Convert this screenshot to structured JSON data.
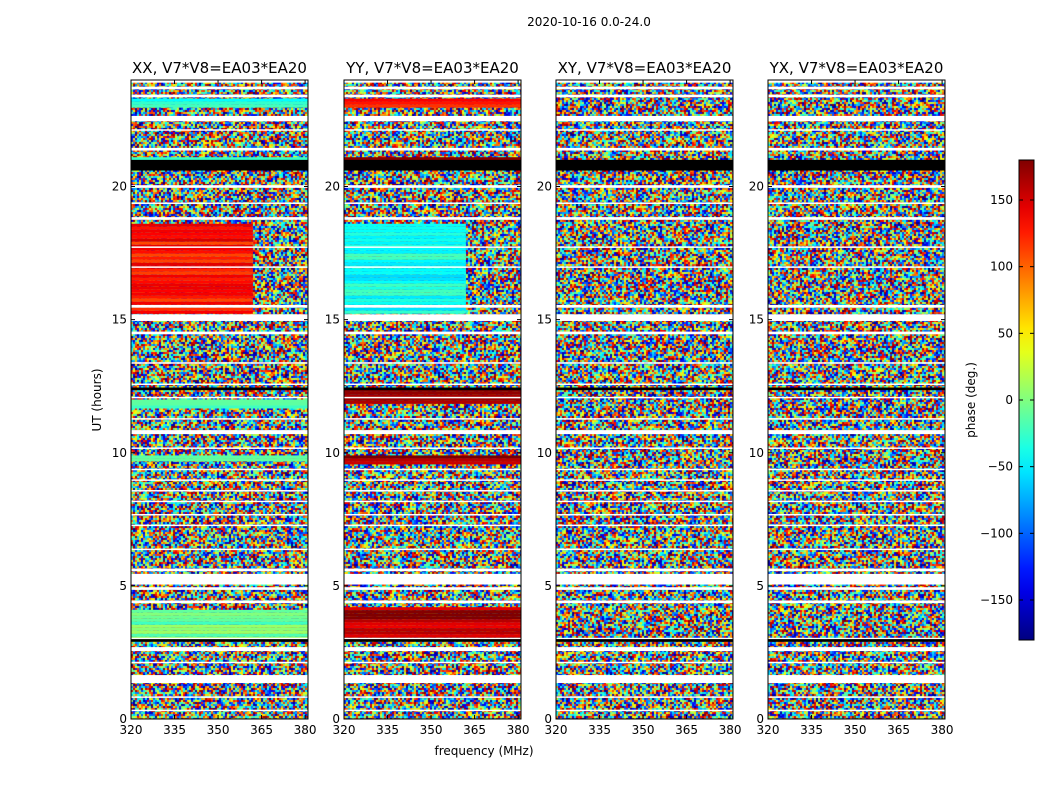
{
  "figure": {
    "suptitle": "2020-10-16 0.0-24.0",
    "xlabel": "frequency (MHz)",
    "ylabel": "UT (hours)"
  },
  "colors": {
    "jet_dark_red": "#800000",
    "jet_red": "#ff2000",
    "jet_orange": "#ff8000",
    "jet_yellow": "#f0f000",
    "jet_green": "#70ff80",
    "jet_cyan": "#00d0ff",
    "jet_blue": "#0020ff",
    "jet_dark_blue": "#000080",
    "gap_white": "#ffffff",
    "flagged_black": "#000000"
  },
  "chart_data": {
    "type": "heatmap",
    "x_range": [
      320,
      381
    ],
    "x_ticks": [
      320,
      335,
      350,
      365,
      380
    ],
    "y_range": [
      0,
      24
    ],
    "y_ticks": [
      0,
      5,
      10,
      15,
      20
    ],
    "colorbar": {
      "label": "phase (deg.)",
      "range": [
        -180,
        180
      ],
      "ticks": [
        150,
        100,
        50,
        0,
        -50,
        -100,
        -150
      ],
      "tick_labels": [
        "150",
        "100",
        "50",
        "0",
        "−50",
        "−100",
        "−150"
      ],
      "colormap": "jet"
    },
    "panels": [
      {
        "title": "XX, V7*V8=EA03*EA20",
        "coherent_bands": [
          {
            "t0": 15.3,
            "t1": 18.6,
            "phase": 130,
            "split_mhz": 362
          },
          {
            "t0": 3.0,
            "t1": 4.1,
            "phase": -10
          },
          {
            "t0": 11.7,
            "t1": 12.0,
            "phase": -10
          },
          {
            "t0": 9.7,
            "t1": 9.9,
            "phase": -20
          },
          {
            "t0": 23.0,
            "t1": 23.3,
            "phase": -40
          },
          {
            "t0": 20.9,
            "t1": 21.1,
            "phase": -15
          }
        ]
      },
      {
        "title": "YY, V7*V8=EA03*EA20",
        "coherent_bands": [
          {
            "t0": 15.3,
            "t1": 18.6,
            "phase": -40,
            "split_mhz": 362
          },
          {
            "t0": 3.0,
            "t1": 4.2,
            "phase": 160
          },
          {
            "t0": 11.9,
            "t1": 12.4,
            "phase": 175
          },
          {
            "t0": 9.6,
            "t1": 9.9,
            "phase": 170
          },
          {
            "t0": 23.0,
            "t1": 23.3,
            "phase": 120
          },
          {
            "t0": 20.9,
            "t1": 21.1,
            "phase": 170
          }
        ]
      },
      {
        "title": "XY, V7*V8=EA03*EA20",
        "coherent_bands": []
      },
      {
        "title": "YX, V7*V8=EA03*EA20",
        "coherent_bands": []
      }
    ],
    "flagged_black_rows": [
      [
        20.6,
        21.0
      ],
      [
        2.9,
        3.0
      ],
      [
        12.35,
        12.45
      ]
    ],
    "gap_rows": [
      [
        0.3,
        0.35
      ],
      [
        0.8,
        0.85
      ],
      [
        1.35,
        1.65
      ],
      [
        2.1,
        2.15
      ],
      [
        2.55,
        2.7
      ],
      [
        3.0,
        3.05
      ],
      [
        4.35,
        4.45
      ],
      [
        4.85,
        4.95
      ],
      [
        5.05,
        5.45
      ],
      [
        5.55,
        5.65
      ],
      [
        6.35,
        6.4
      ],
      [
        7.25,
        7.3
      ],
      [
        7.65,
        7.7
      ],
      [
        8.15,
        8.2
      ],
      [
        8.55,
        8.6
      ],
      [
        8.95,
        9.0
      ],
      [
        9.35,
        9.4
      ],
      [
        10.15,
        10.2
      ],
      [
        10.7,
        10.85
      ],
      [
        11.25,
        11.3
      ],
      [
        12.05,
        12.1
      ],
      [
        12.55,
        12.6
      ],
      [
        13.35,
        13.4
      ],
      [
        14.45,
        14.55
      ],
      [
        14.95,
        15.2
      ],
      [
        15.45,
        15.55
      ],
      [
        16.95,
        17.0
      ],
      [
        17.7,
        17.75
      ],
      [
        18.75,
        18.85
      ],
      [
        19.35,
        19.4
      ],
      [
        19.95,
        20.05
      ],
      [
        21.35,
        21.45
      ],
      [
        22.1,
        22.15
      ],
      [
        22.45,
        22.65
      ],
      [
        23.35,
        23.45
      ],
      [
        23.65,
        23.75
      ],
      [
        23.9,
        24.0
      ]
    ]
  }
}
